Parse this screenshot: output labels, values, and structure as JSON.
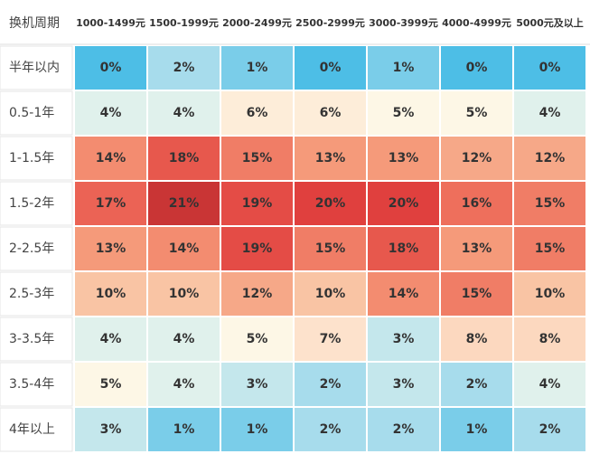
{
  "chart_data": {
    "type": "heatmap",
    "corner_label": "换机周期",
    "x_categories": [
      "1000-1499元",
      "1500-1999元",
      "2000-2499元",
      "2500-2999元",
      "3000-3999元",
      "4000-4999元",
      "5000元及以上"
    ],
    "y_categories": [
      "半年以内",
      "0.5-1年",
      "1-1.5年",
      "1.5-2年",
      "2-2.5年",
      "2.5-3年",
      "3-3.5年",
      "3.5-4年",
      "4年以上"
    ],
    "values": [
      [
        0,
        2,
        1,
        0,
        1,
        0,
        0
      ],
      [
        4,
        4,
        6,
        6,
        5,
        5,
        4
      ],
      [
        14,
        18,
        15,
        13,
        13,
        12,
        12
      ],
      [
        17,
        21,
        19,
        20,
        20,
        16,
        15
      ],
      [
        13,
        14,
        19,
        15,
        18,
        13,
        15
      ],
      [
        10,
        10,
        12,
        10,
        14,
        15,
        10
      ],
      [
        4,
        4,
        5,
        7,
        3,
        8,
        8
      ],
      [
        5,
        4,
        3,
        2,
        3,
        2,
        4
      ],
      [
        3,
        1,
        1,
        2,
        2,
        1,
        2
      ]
    ],
    "value_labels": [
      [
        "0%",
        "2%",
        "1%",
        "0%",
        "1%",
        "0%",
        "0%"
      ],
      [
        "4%",
        "4%",
        "6%",
        "6%",
        "5%",
        "5%",
        "4%"
      ],
      [
        "14%",
        "18%",
        "15%",
        "13%",
        "13%",
        "12%",
        "12%"
      ],
      [
        "17%",
        "21%",
        "19%",
        "20%",
        "20%",
        "16%",
        "15%"
      ],
      [
        "13%",
        "14%",
        "19%",
        "15%",
        "18%",
        "13%",
        "15%"
      ],
      [
        "10%",
        "10%",
        "12%",
        "10%",
        "14%",
        "15%",
        "10%"
      ],
      [
        "4%",
        "4%",
        "5%",
        "7%",
        "3%",
        "8%",
        "8%"
      ],
      [
        "5%",
        "4%",
        "3%",
        "2%",
        "3%",
        "2%",
        "4%"
      ],
      [
        "3%",
        "1%",
        "1%",
        "2%",
        "2%",
        "1%",
        "2%"
      ]
    ]
  }
}
